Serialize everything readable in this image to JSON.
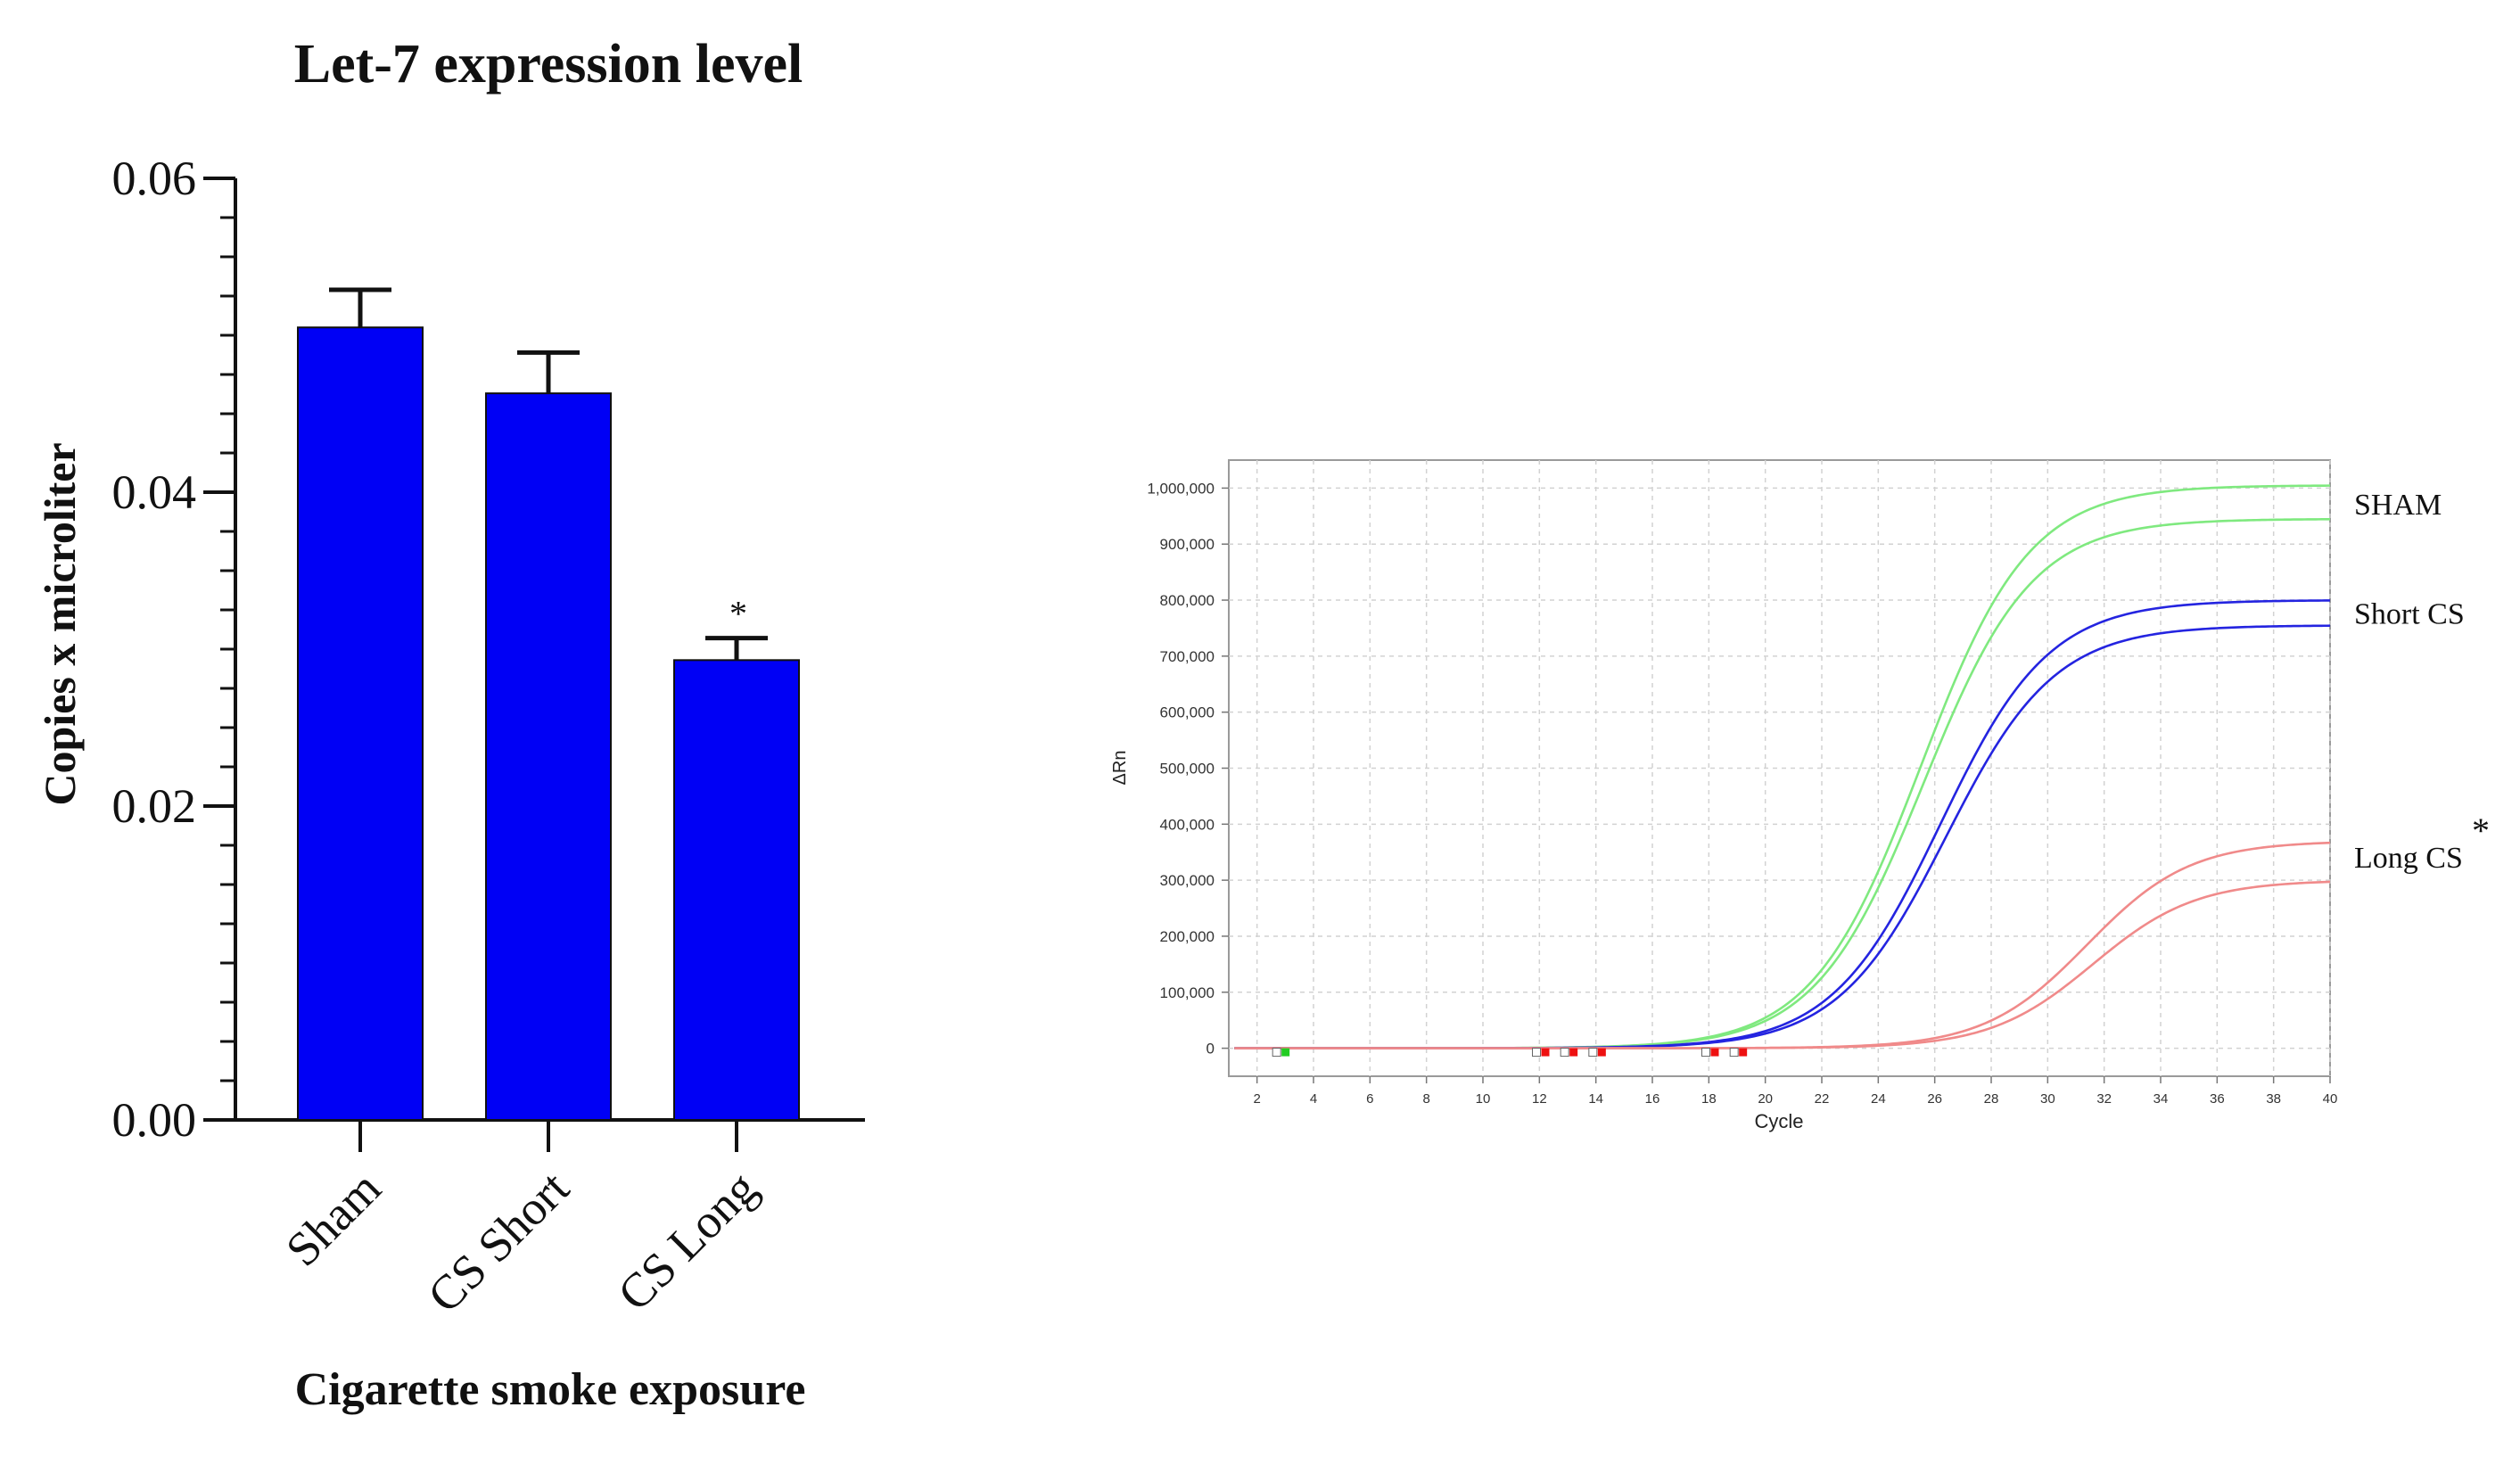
{
  "chart_data": [
    {
      "type": "bar",
      "title": "Let-7 expression level",
      "xlabel": "Cigarette smoke exposure",
      "ylabel": "Copies x microliter",
      "categories": [
        "Sham",
        "CS Short",
        "CS Long"
      ],
      "values": [
        0.0505,
        0.0463,
        0.0293
      ],
      "errors": [
        0.0024,
        0.0026,
        0.0014
      ],
      "annotations": [
        "",
        "",
        "*"
      ],
      "ylim": [
        0,
        0.06
      ],
      "yticks": [
        0.0,
        0.02,
        0.04,
        0.06
      ],
      "ytick_labels": [
        "0.00",
        "0.02",
        "0.04",
        "0.06"
      ],
      "bar_color": "#0000f5",
      "grid": false
    },
    {
      "type": "line",
      "title": "",
      "xlabel": "Cycle",
      "ylabel": "ΔRn",
      "xlim": [
        1,
        40
      ],
      "ylim": [
        -50000,
        1050000
      ],
      "xticks": [
        2,
        4,
        6,
        8,
        10,
        12,
        14,
        16,
        18,
        20,
        22,
        24,
        26,
        28,
        30,
        32,
        34,
        36,
        38,
        40
      ],
      "xtick_labels": [
        "2",
        "4",
        "6",
        "8",
        "10",
        "12",
        "14",
        "16",
        "18",
        "20",
        "22",
        "24",
        "26",
        "28",
        "30",
        "32",
        "34",
        "36",
        "38",
        "40"
      ],
      "yticks": [
        0,
        100000,
        200000,
        300000,
        400000,
        500000,
        600000,
        700000,
        800000,
        900000,
        1000000
      ],
      "ytick_labels": [
        "0",
        "100,000",
        "200,000",
        "300,000",
        "400,000",
        "500,000",
        "600,000",
        "700,000",
        "800,000",
        "900,000",
        "1,000,000"
      ],
      "grid": true,
      "group_labels": [
        {
          "text": "SHAM",
          "at_value": 975000,
          "star": ""
        },
        {
          "text": "Short CS",
          "at_value": 780000,
          "star": ""
        },
        {
          "text": "Long CS",
          "at_value": 345000,
          "star": "*"
        }
      ],
      "series": [
        {
          "group": 0,
          "color": "#7fe97f",
          "plateau": 1005000,
          "midpoint": 25.5,
          "slope": 0.52
        },
        {
          "group": 0,
          "color": "#7fe97f",
          "plateau": 945000,
          "midpoint": 25.6,
          "slope": 0.52
        },
        {
          "group": 1,
          "color": "#2424e0",
          "plateau": 800000,
          "midpoint": 26.2,
          "slope": 0.52
        },
        {
          "group": 1,
          "color": "#2424e0",
          "plateau": 755000,
          "midpoint": 26.4,
          "slope": 0.52
        },
        {
          "group": 2,
          "color": "#f08a8a",
          "plateau": 370000,
          "midpoint": 31.4,
          "slope": 0.55
        },
        {
          "group": 2,
          "color": "#f08a8a",
          "plateau": 300000,
          "midpoint": 31.6,
          "slope": 0.55
        }
      ],
      "threshold_markers": [
        {
          "x": 2.9,
          "color": "#22cc22"
        },
        {
          "x": 12.1,
          "color": "#ee1111"
        },
        {
          "x": 13.1,
          "color": "#ee1111"
        },
        {
          "x": 14.1,
          "color": "#ee1111"
        },
        {
          "x": 18.1,
          "color": "#ee1111"
        },
        {
          "x": 19.1,
          "color": "#ee1111"
        }
      ]
    }
  ]
}
